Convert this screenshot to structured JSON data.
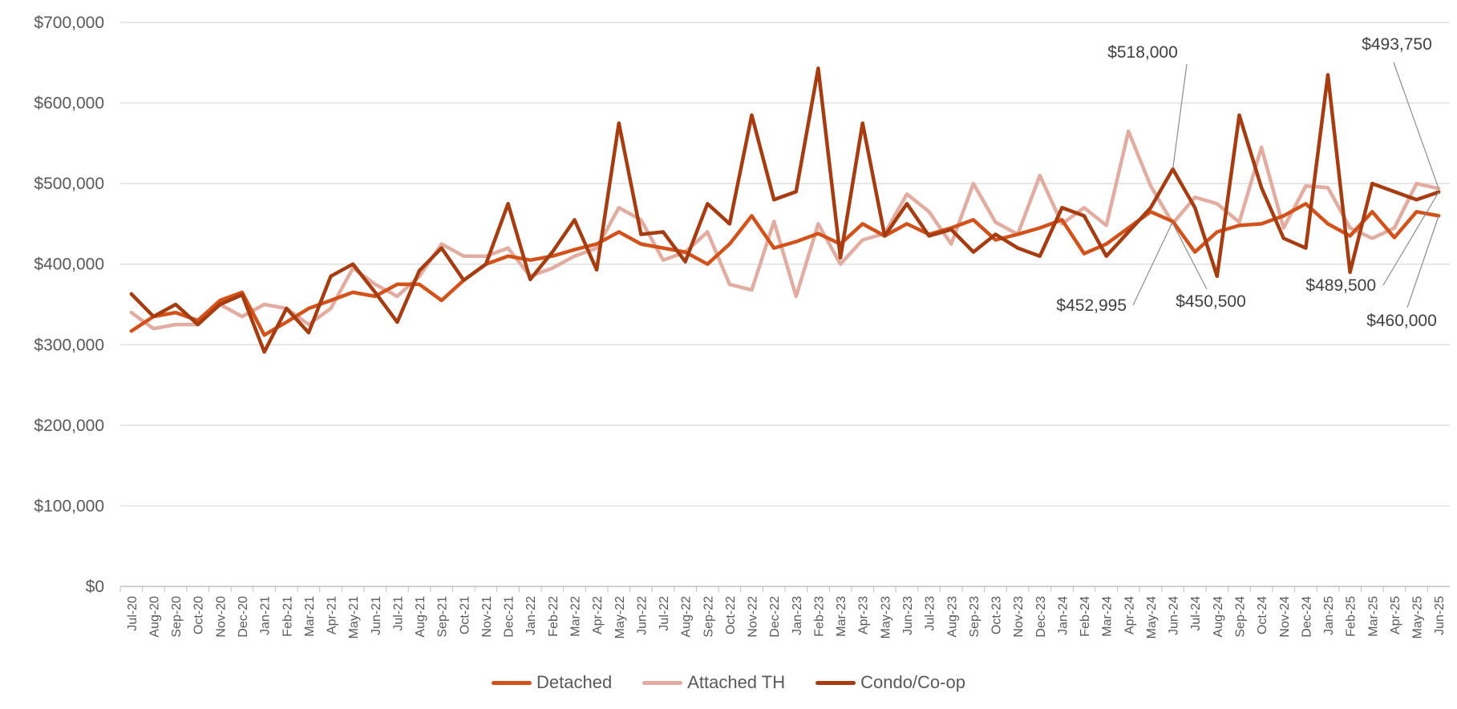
{
  "chart_data": {
    "type": "line",
    "title": "",
    "xlabel": "",
    "ylabel": "",
    "ylim": [
      0,
      700000
    ],
    "y_ticks": [
      0,
      100000,
      200000,
      300000,
      400000,
      500000,
      600000,
      700000
    ],
    "y_tick_labels": [
      "$0",
      "$100,000",
      "$200,000",
      "$300,000",
      "$400,000",
      "$500,000",
      "$600,000",
      "$700,000"
    ],
    "grid": "horizontal",
    "legend_position": "bottom-center",
    "categories": [
      "Jul-20",
      "Aug-20",
      "Sep-20",
      "Oct-20",
      "Nov-20",
      "Dec-20",
      "Jan-21",
      "Feb-21",
      "Mar-21",
      "Apr-21",
      "May-21",
      "Jun-21",
      "Jul-21",
      "Aug-21",
      "Sep-21",
      "Oct-21",
      "Nov-21",
      "Dec-21",
      "Jan-22",
      "Feb-22",
      "Mar-22",
      "Apr-22",
      "May-22",
      "Jun-22",
      "Jul-22",
      "Aug-22",
      "Sep-22",
      "Oct-22",
      "Nov-22",
      "Dec-22",
      "Jan-23",
      "Feb-23",
      "Mar-23",
      "Apr-23",
      "May-23",
      "Jun-23",
      "Jul-23",
      "Aug-23",
      "Sep-23",
      "Oct-23",
      "Nov-23",
      "Dec-23",
      "Jan-24",
      "Feb-24",
      "Mar-24",
      "Apr-24",
      "May-24",
      "Jun-24",
      "Jul-24",
      "Aug-24",
      "Sep-24",
      "Oct-24",
      "Nov-24",
      "Dec-24",
      "Jan-25",
      "Feb-25",
      "Mar-25",
      "Apr-25",
      "May-25",
      "Jun-25"
    ],
    "series": [
      {
        "name": "Detached",
        "color": "#D4521A",
        "values": [
          317000,
          335000,
          340000,
          330000,
          355000,
          365000,
          312000,
          328000,
          345000,
          355000,
          365000,
          360000,
          375000,
          375000,
          355000,
          380000,
          400000,
          410000,
          405000,
          410000,
          418000,
          425000,
          440000,
          425000,
          420000,
          415000,
          400000,
          425000,
          460000,
          420000,
          428000,
          438000,
          425000,
          450000,
          435000,
          450000,
          437000,
          445000,
          455000,
          430000,
          437000,
          445000,
          455000,
          413000,
          425000,
          445000,
          465000,
          452995,
          415000,
          440000,
          448000,
          450000,
          460000,
          475000,
          450000,
          435000,
          465000,
          433000,
          465000,
          460000
        ]
      },
      {
        "name": "Attached TH",
        "color": "#E3ACA0",
        "values": [
          340000,
          320000,
          325000,
          325000,
          350000,
          335000,
          350000,
          345000,
          325000,
          345000,
          395000,
          375000,
          360000,
          385000,
          425000,
          410000,
          410000,
          420000,
          385000,
          395000,
          410000,
          420000,
          470000,
          455000,
          405000,
          415000,
          440000,
          375000,
          368000,
          453000,
          360000,
          450000,
          400000,
          430000,
          438000,
          487000,
          465000,
          425000,
          500000,
          452000,
          437000,
          510000,
          450000,
          470000,
          448000,
          565000,
          497000,
          450500,
          483000,
          475000,
          452000,
          545000,
          445000,
          497000,
          495000,
          445000,
          432000,
          445000,
          500000,
          493750
        ]
      },
      {
        "name": "Condo/Co-op",
        "color": "#A63C10",
        "values": [
          363000,
          335000,
          350000,
          325000,
          350000,
          362000,
          291000,
          345000,
          315000,
          385000,
          400000,
          365000,
          328000,
          392000,
          420000,
          380000,
          400000,
          475000,
          381000,
          415000,
          455000,
          393000,
          575000,
          437000,
          440000,
          403000,
          475000,
          450000,
          585000,
          480000,
          490000,
          643000,
          408000,
          575000,
          435000,
          475000,
          435000,
          443000,
          415000,
          437000,
          420000,
          410000,
          470000,
          460000,
          410000,
          440000,
          470000,
          518000,
          470000,
          385000,
          585000,
          495000,
          432000,
          420000,
          635000,
          390000,
          500000,
          490000,
          480000,
          489500
        ]
      }
    ],
    "annotations": [
      {
        "text": "$518,000",
        "series": "Condo/Co-op",
        "x": "Jun-24",
        "value": 518000
      },
      {
        "text": "$452,995",
        "series": "Detached",
        "x": "Jun-24",
        "value": 452995
      },
      {
        "text": "$450,500",
        "series": "Attached TH",
        "x": "Jun-24",
        "value": 450500
      },
      {
        "text": "$493,750",
        "series": "Attached TH",
        "x": "Jun-25",
        "value": 493750
      },
      {
        "text": "$489,500",
        "series": "Condo/Co-op",
        "x": "Jun-25",
        "value": 489500
      },
      {
        "text": "$460,000",
        "series": "Detached",
        "x": "Jun-25",
        "value": 460000
      }
    ]
  },
  "colors": {
    "grid": "#D9D9D9",
    "axis": "#BFBFBF",
    "tick_text": "#595959",
    "leader_line": "#8C8C8C"
  }
}
